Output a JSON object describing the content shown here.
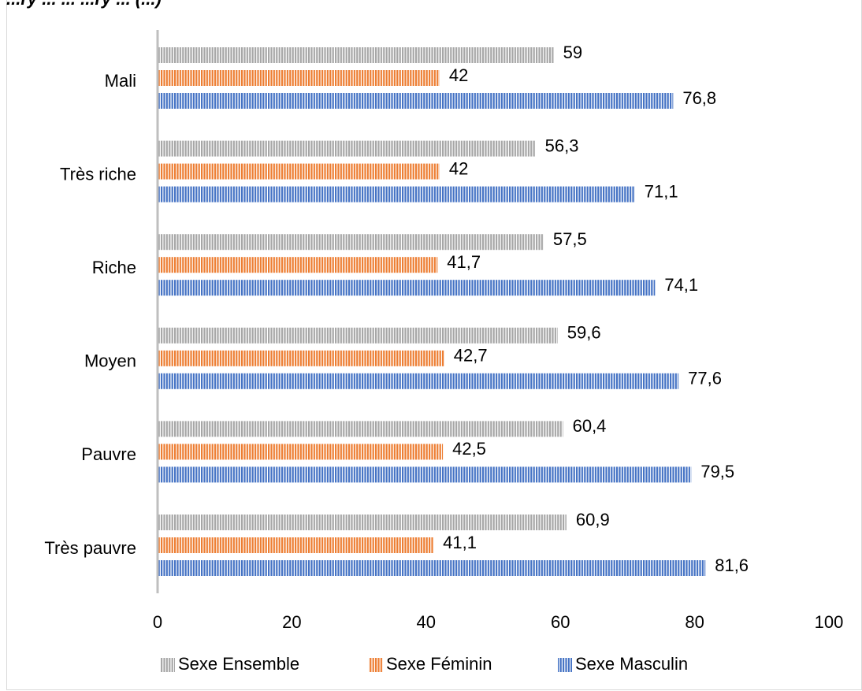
{
  "header": {
    "partial_title": "...ry ... ... ...ry ... (...)"
  },
  "chart_data": {
    "type": "bar",
    "orientation": "horizontal",
    "categories": [
      "Mali",
      "Très riche",
      "Riche",
      "Moyen",
      "Pauvre",
      "Très pauvre"
    ],
    "series": [
      {
        "name": "Sexe Ensemble",
        "color": "#a6a6a6",
        "values": [
          59,
          56.3,
          57.5,
          59.6,
          60.4,
          60.9
        ],
        "labels": [
          "59",
          "56,3",
          "57,5",
          "59,6",
          "60,4",
          "60,9"
        ]
      },
      {
        "name": "Sexe Féminin",
        "color": "#ed7d31",
        "values": [
          42,
          42,
          41.7,
          42.7,
          42.5,
          41.1
        ],
        "labels": [
          "42",
          "42",
          "41,7",
          "42,7",
          "42,5",
          "41,1"
        ]
      },
      {
        "name": "Sexe Masculin",
        "color": "#4472c4",
        "values": [
          76.8,
          71.1,
          74.1,
          77.6,
          79.5,
          81.6
        ],
        "labels": [
          "76,8",
          "71,1",
          "74,1",
          "77,6",
          "79,5",
          "81,6"
        ]
      }
    ],
    "xlim": [
      0,
      100
    ],
    "xticks": [
      "0",
      "20",
      "40",
      "60",
      "80",
      "100"
    ],
    "grid": false,
    "legend_position": "bottom",
    "bar_pattern": "vertical-stripes"
  }
}
